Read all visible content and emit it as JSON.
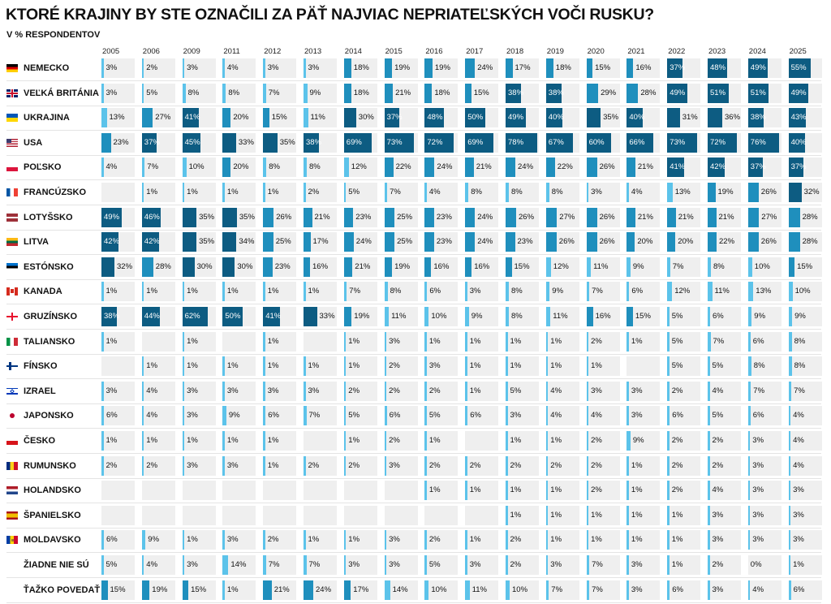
{
  "title": "KTORÉ KRAJINY BY STE OZNAČILI ZA PÄŤ NAJVIAC NEPRIATEĽSKÝCH VOČI RUSKU?",
  "subtitle": "V % RESPONDENTOV",
  "colors": {
    "cell_bg": "#efefef",
    "text": "#111111",
    "bar_dark": "#0d5c82",
    "bar_mid": "#1f8fbd",
    "bar_light": "#5cc3ea"
  },
  "chart_data": {
    "type": "table",
    "title": "KTORÉ KRAJINY BY STE OZNAČILI ZA PÄŤ NAJVIAC NEPRIATEĽSKÝCH VOČI RUSKU?",
    "subtitle": "V % RESPONDENTOV",
    "unit": "%",
    "years": [
      "2005",
      "2006",
      "2009",
      "2011",
      "2012",
      "2013",
      "2014",
      "2015",
      "2016",
      "2017",
      "2018",
      "2019",
      "2020",
      "2021",
      "2022",
      "2023",
      "2024",
      "2025"
    ],
    "rows": [
      {
        "label": "NEMECKO",
        "flag": "de",
        "values": [
          3,
          2,
          3,
          4,
          3,
          3,
          18,
          19,
          19,
          24,
          17,
          18,
          15,
          16,
          37,
          48,
          49,
          55
        ]
      },
      {
        "label": "VEĽKÁ BRITÁNIA",
        "flag": "gb",
        "values": [
          3,
          5,
          8,
          8,
          7,
          9,
          18,
          21,
          18,
          15,
          38,
          38,
          29,
          28,
          49,
          51,
          51,
          49
        ]
      },
      {
        "label": "UKRAJINA",
        "flag": "ua",
        "values": [
          13,
          27,
          41,
          20,
          15,
          11,
          30,
          37,
          48,
          50,
          49,
          40,
          35,
          40,
          31,
          36,
          38,
          43
        ]
      },
      {
        "label": "USA",
        "flag": "us",
        "values": [
          23,
          37,
          45,
          33,
          35,
          38,
          69,
          73,
          72,
          69,
          78,
          67,
          60,
          66,
          73,
          72,
          76,
          40
        ]
      },
      {
        "label": "POĽSKO",
        "flag": "pl",
        "values": [
          4,
          7,
          10,
          20,
          8,
          8,
          12,
          22,
          24,
          21,
          24,
          22,
          26,
          21,
          41,
          42,
          37,
          37
        ]
      },
      {
        "label": "FRANCÚZSKO",
        "flag": "fr",
        "values": [
          null,
          1,
          1,
          1,
          1,
          2,
          5,
          7,
          4,
          8,
          8,
          8,
          3,
          4,
          13,
          19,
          26,
          32
        ]
      },
      {
        "label": "LOTYŠSKO",
        "flag": "lv",
        "values": [
          49,
          46,
          35,
          35,
          26,
          21,
          23,
          25,
          23,
          24,
          26,
          27,
          26,
          21,
          21,
          21,
          27,
          28
        ]
      },
      {
        "label": "LITVA",
        "flag": "lt",
        "values": [
          42,
          42,
          35,
          34,
          25,
          17,
          24,
          25,
          23,
          24,
          23,
          26,
          26,
          20,
          20,
          22,
          26,
          28
        ]
      },
      {
        "label": "ESTÓNSKO",
        "flag": "ee",
        "values": [
          32,
          28,
          30,
          30,
          23,
          16,
          21,
          19,
          16,
          16,
          15,
          12,
          11,
          9,
          7,
          8,
          10,
          15
        ]
      },
      {
        "label": "KANADA",
        "flag": "ca",
        "values": [
          1,
          1,
          1,
          1,
          1,
          1,
          7,
          8,
          6,
          3,
          8,
          9,
          7,
          6,
          12,
          11,
          13,
          10
        ]
      },
      {
        "label": "GRUZÍNSKO",
        "flag": "ge",
        "values": [
          38,
          44,
          62,
          50,
          41,
          33,
          19,
          11,
          10,
          9,
          8,
          11,
          16,
          15,
          5,
          6,
          9,
          9
        ]
      },
      {
        "label": "TALIANSKO",
        "flag": "it",
        "values": [
          1,
          null,
          1,
          null,
          1,
          null,
          1,
          3,
          1,
          1,
          1,
          1,
          2,
          1,
          5,
          7,
          6,
          8
        ]
      },
      {
        "label": "FÍNSKO",
        "flag": "fi",
        "values": [
          null,
          1,
          1,
          1,
          1,
          1,
          1,
          2,
          3,
          1,
          1,
          1,
          1,
          null,
          5,
          5,
          8,
          8
        ]
      },
      {
        "label": "IZRAEL",
        "flag": "il",
        "values": [
          3,
          4,
          3,
          3,
          3,
          3,
          2,
          2,
          2,
          1,
          5,
          4,
          3,
          3,
          2,
          4,
          7,
          7
        ]
      },
      {
        "label": "JAPONSKO",
        "flag": "jp",
        "values": [
          6,
          4,
          3,
          9,
          6,
          7,
          5,
          6,
          5,
          6,
          3,
          4,
          4,
          3,
          6,
          5,
          6,
          4
        ]
      },
      {
        "label": "ČESKO",
        "flag": "cz",
        "values": [
          1,
          1,
          1,
          1,
          1,
          null,
          1,
          2,
          1,
          null,
          1,
          1,
          2,
          9,
          2,
          2,
          3,
          4
        ]
      },
      {
        "label": "RUMUNSKO",
        "flag": "ro",
        "values": [
          2,
          2,
          3,
          3,
          1,
          2,
          2,
          3,
          2,
          2,
          2,
          2,
          2,
          1,
          2,
          2,
          3,
          4
        ]
      },
      {
        "label": "HOLANDSKO",
        "flag": "nl",
        "values": [
          null,
          null,
          null,
          null,
          null,
          null,
          null,
          null,
          1,
          1,
          1,
          1,
          2,
          1,
          2,
          4,
          3,
          3
        ]
      },
      {
        "label": "ŠPANIELSKO",
        "flag": "es",
        "values": [
          null,
          null,
          null,
          null,
          null,
          null,
          null,
          null,
          null,
          null,
          1,
          1,
          1,
          1,
          1,
          3,
          3,
          3
        ]
      },
      {
        "label": "MOLDAVSKO",
        "flag": "md",
        "values": [
          6,
          9,
          1,
          3,
          2,
          1,
          1,
          3,
          2,
          1,
          2,
          1,
          1,
          1,
          1,
          3,
          3,
          3
        ]
      },
      {
        "label": "ŽIADNE NIE SÚ",
        "flag": "",
        "values": [
          5,
          4,
          3,
          14,
          7,
          7,
          3,
          3,
          5,
          3,
          2,
          3,
          7,
          3,
          1,
          2,
          0,
          1
        ]
      },
      {
        "label": "ŤAŽKO POVEDAŤ",
        "flag": "",
        "values": [
          15,
          19,
          15,
          1,
          21,
          24,
          17,
          14,
          10,
          11,
          10,
          7,
          7,
          3,
          6,
          3,
          4,
          6
        ]
      }
    ]
  }
}
